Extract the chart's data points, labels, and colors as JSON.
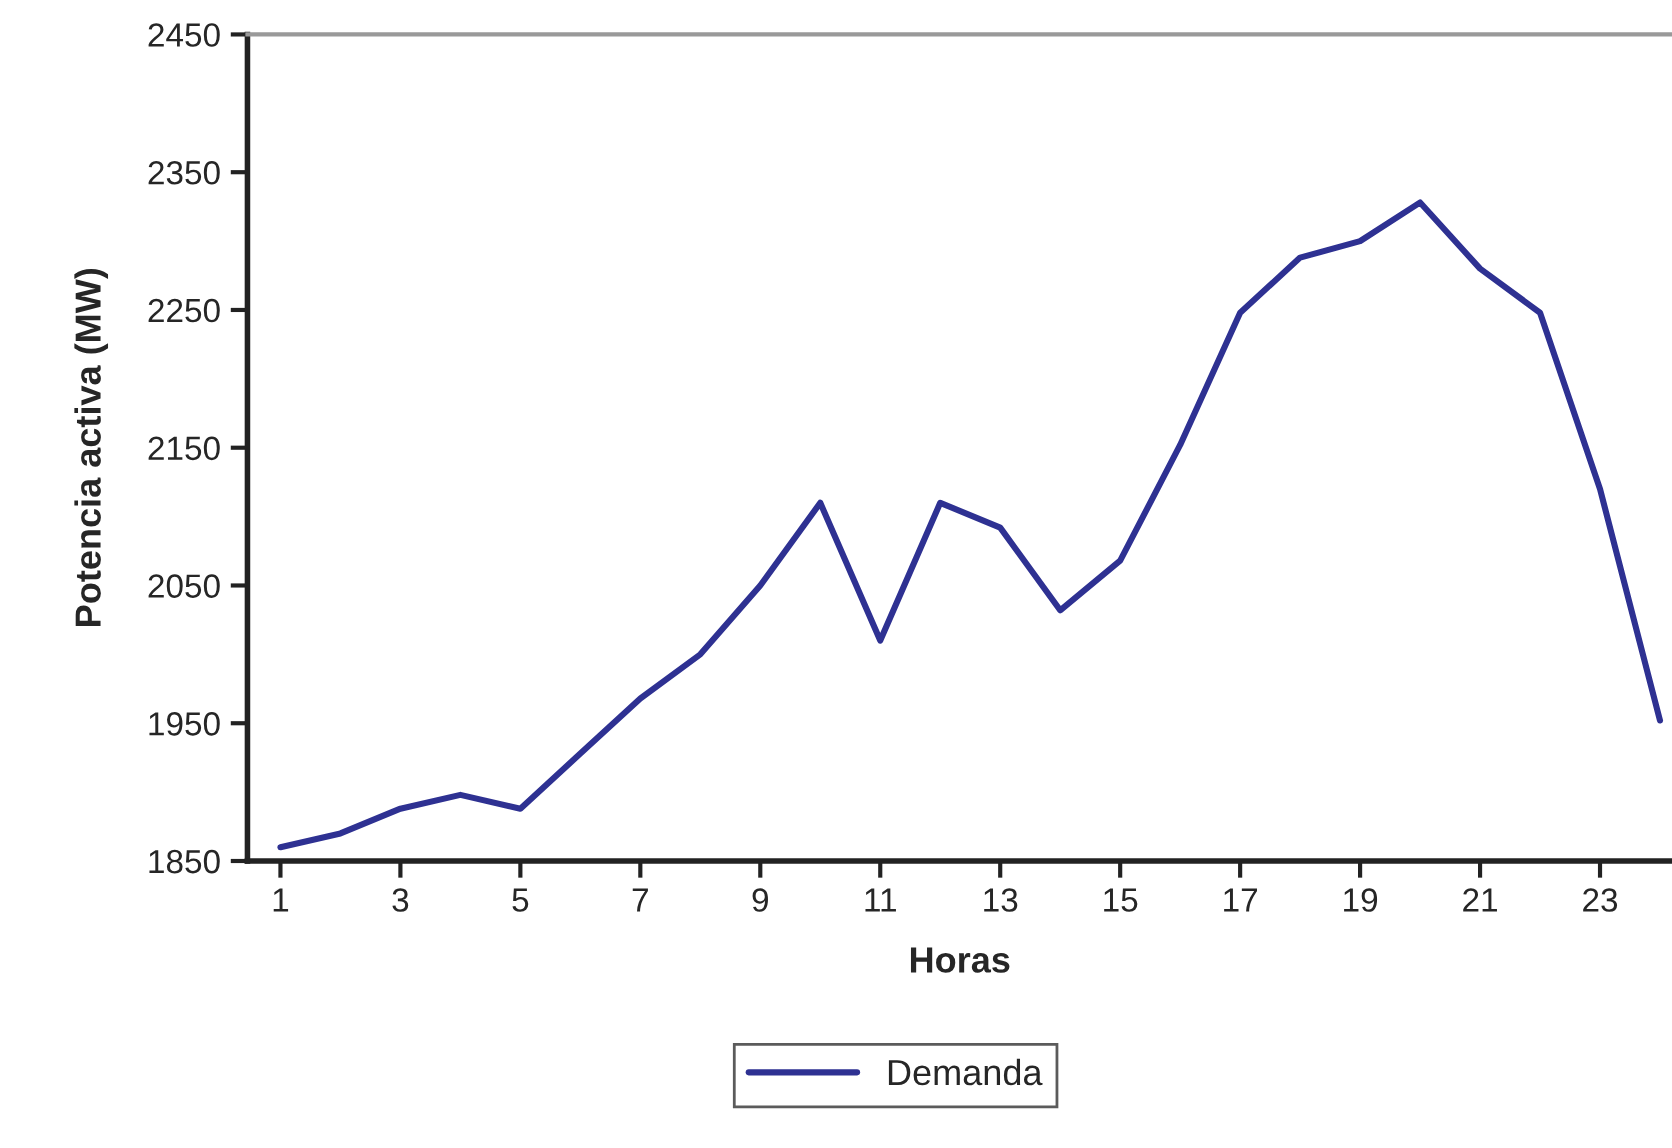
{
  "chart_data": {
    "type": "line",
    "xlabel": "Horas",
    "ylabel": "Potencia activa (MW)",
    "x": [
      1,
      2,
      3,
      4,
      5,
      6,
      7,
      8,
      9,
      10,
      11,
      12,
      13,
      14,
      15,
      16,
      17,
      18,
      19,
      20,
      21,
      22,
      23,
      24
    ],
    "series": [
      {
        "name": "Demanda",
        "color": "#2e3192",
        "values": [
          1860,
          1870,
          1888,
          1898,
          1888,
          1928,
          1968,
          2000,
          2050,
          2110,
          2010,
          2110,
          2092,
          2032,
          2068,
          2152,
          2248,
          2288,
          2300,
          2328,
          2280,
          2248,
          2120,
          1952
        ]
      }
    ],
    "xlim": [
      0.45,
      24.2
    ],
    "xticks": [
      1,
      3,
      5,
      7,
      9,
      11,
      13,
      15,
      17,
      19,
      21,
      23
    ],
    "ylim": [
      1850,
      2450
    ],
    "yticks": [
      1850,
      1950,
      2050,
      2150,
      2250,
      2350,
      2450
    ],
    "grid": false,
    "legend": "bottom",
    "marker": "none",
    "line_style": "solid"
  }
}
